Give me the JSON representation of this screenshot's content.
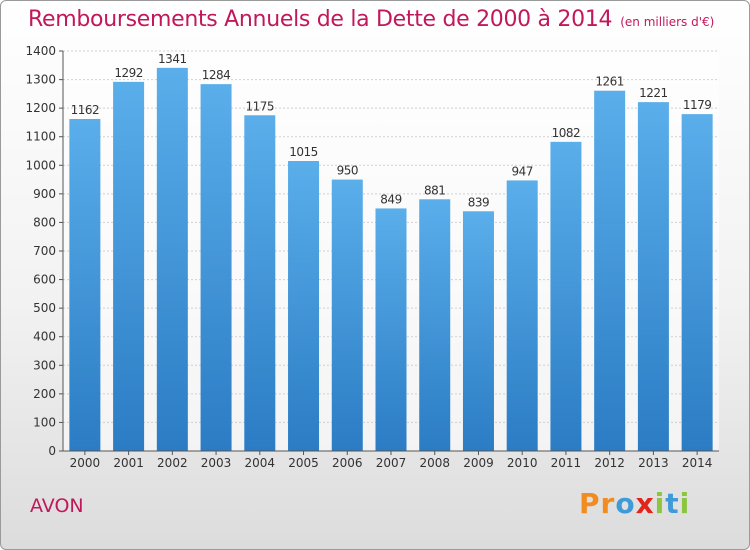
{
  "chart_data": {
    "type": "bar",
    "title": "Remboursements Annuels de la Dette de 2000 à 2014",
    "subtitle": "(en milliers d'€)",
    "categories": [
      "2000",
      "2001",
      "2002",
      "2003",
      "2004",
      "2005",
      "2006",
      "2007",
      "2008",
      "2009",
      "2010",
      "2011",
      "2012",
      "2013",
      "2014"
    ],
    "values": [
      1162,
      1292,
      1341,
      1284,
      1175,
      1015,
      950,
      849,
      881,
      839,
      947,
      1082,
      1261,
      1221,
      1179
    ],
    "ylim": [
      0,
      1400
    ],
    "yticks": [
      0,
      100,
      200,
      300,
      400,
      500,
      600,
      700,
      800,
      900,
      1000,
      1100,
      1200,
      1300,
      1400
    ],
    "grid": true,
    "bar_color_top": "#5aaeea",
    "bar_color_bottom": "#2b7cc4"
  },
  "commune": "AVON",
  "brand": {
    "letters": [
      "P",
      "r",
      "o",
      "x",
      "i",
      "t",
      "i"
    ],
    "colors": [
      "#f28c1e",
      "#f28c1e",
      "#3f9ad8",
      "#e2241b",
      "#8cc63f",
      "#3f9ad8",
      "#8cc63f"
    ]
  }
}
